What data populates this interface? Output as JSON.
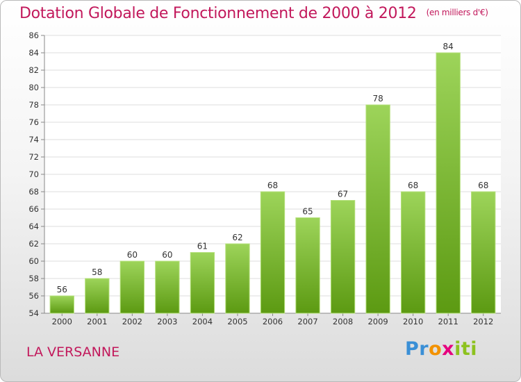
{
  "title": "Dotation Globale de Fonctionnement de 2000 à 2012",
  "unit": "(en milliers d'€)",
  "commune": "LA VERSANNE",
  "logo": {
    "p1": "Pr",
    "p2": "o",
    "p3": "x",
    "p4": "iti"
  },
  "colors": {
    "title": "#c2185b",
    "bar_top": "#9dd45a",
    "bar_bottom": "#5c9a12"
  },
  "chart_data": {
    "type": "bar",
    "title": "Dotation Globale de Fonctionnement de 2000 à 2012",
    "xlabel": "",
    "ylabel": "",
    "categories": [
      "2000",
      "2001",
      "2002",
      "2003",
      "2004",
      "2005",
      "2006",
      "2007",
      "2008",
      "2009",
      "2010",
      "2011",
      "2012"
    ],
    "values": [
      56,
      58,
      60,
      60,
      61,
      62,
      68,
      65,
      67,
      78,
      68,
      84,
      68
    ],
    "ylim": [
      54,
      86
    ],
    "yticks": [
      54,
      56,
      58,
      60,
      62,
      64,
      66,
      68,
      70,
      72,
      74,
      76,
      78,
      80,
      82,
      84,
      86
    ],
    "grid": true
  }
}
